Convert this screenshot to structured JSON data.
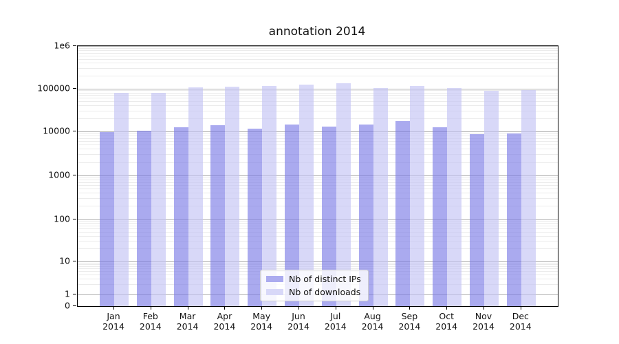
{
  "figure": {
    "background": "#ffffff"
  },
  "chart_data": {
    "type": "bar",
    "title": "annotation 2014",
    "xlabel": "",
    "ylabel": "",
    "yscale": "log",
    "ylim": [
      0,
      1000000
    ],
    "grid": true,
    "legend_position": "lower center",
    "categories": [
      "Jan",
      "Feb",
      "Mar",
      "Apr",
      "May",
      "Jun",
      "Jul",
      "Aug",
      "Sep",
      "Oct",
      "Nov",
      "Dec"
    ],
    "category_year": "2014",
    "ytick_values": [
      0,
      1,
      10,
      100,
      1000,
      10000,
      100000,
      1000000
    ],
    "ytick_labels": [
      "0",
      "1",
      "10",
      "100",
      "1000",
      "10000",
      "100000",
      "1e6"
    ],
    "series": [
      {
        "name": "Nb of distinct IPs",
        "color": "#7d7de6",
        "alpha": 0.65,
        "values": [
          9700,
          10500,
          12350,
          14100,
          11700,
          14400,
          13100,
          14400,
          17300,
          12500,
          8600,
          9100
        ]
      },
      {
        "name": "Nb of downloads",
        "color": "#c3c3f4",
        "alpha": 0.65,
        "values": [
          80000,
          78000,
          105000,
          110000,
          112000,
          121000,
          131000,
          103000,
          112000,
          103000,
          87000,
          91000
        ]
      }
    ]
  }
}
